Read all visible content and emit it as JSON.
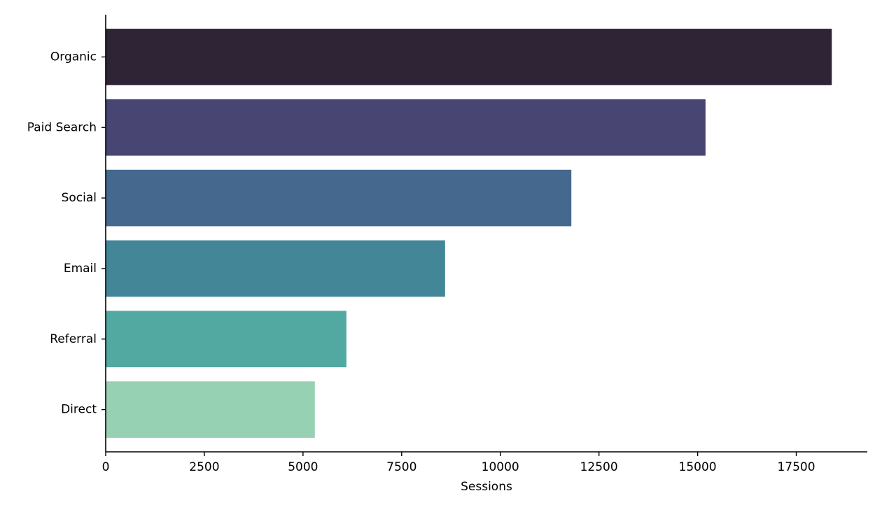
{
  "chart_data": {
    "type": "bar",
    "orientation": "horizontal",
    "title": "",
    "xlabel": "Sessions",
    "ylabel": "",
    "categories": [
      "Organic",
      "Paid Search",
      "Social",
      "Email",
      "Referral",
      "Direct"
    ],
    "values": [
      18400,
      15200,
      11800,
      8600,
      6100,
      5300
    ],
    "colors": [
      "#2f2336",
      "#484573",
      "#44688e",
      "#428697",
      "#51a9a2",
      "#97d1b3"
    ],
    "xlim": [
      0,
      19300
    ],
    "xticks": [
      0,
      2500,
      5000,
      7500,
      10000,
      12500,
      15000,
      17500
    ],
    "xtick_labels": [
      "0",
      "2500",
      "5000",
      "7500",
      "10000",
      "12500",
      "15000",
      "17500"
    ],
    "grid": false,
    "legend": "none"
  }
}
